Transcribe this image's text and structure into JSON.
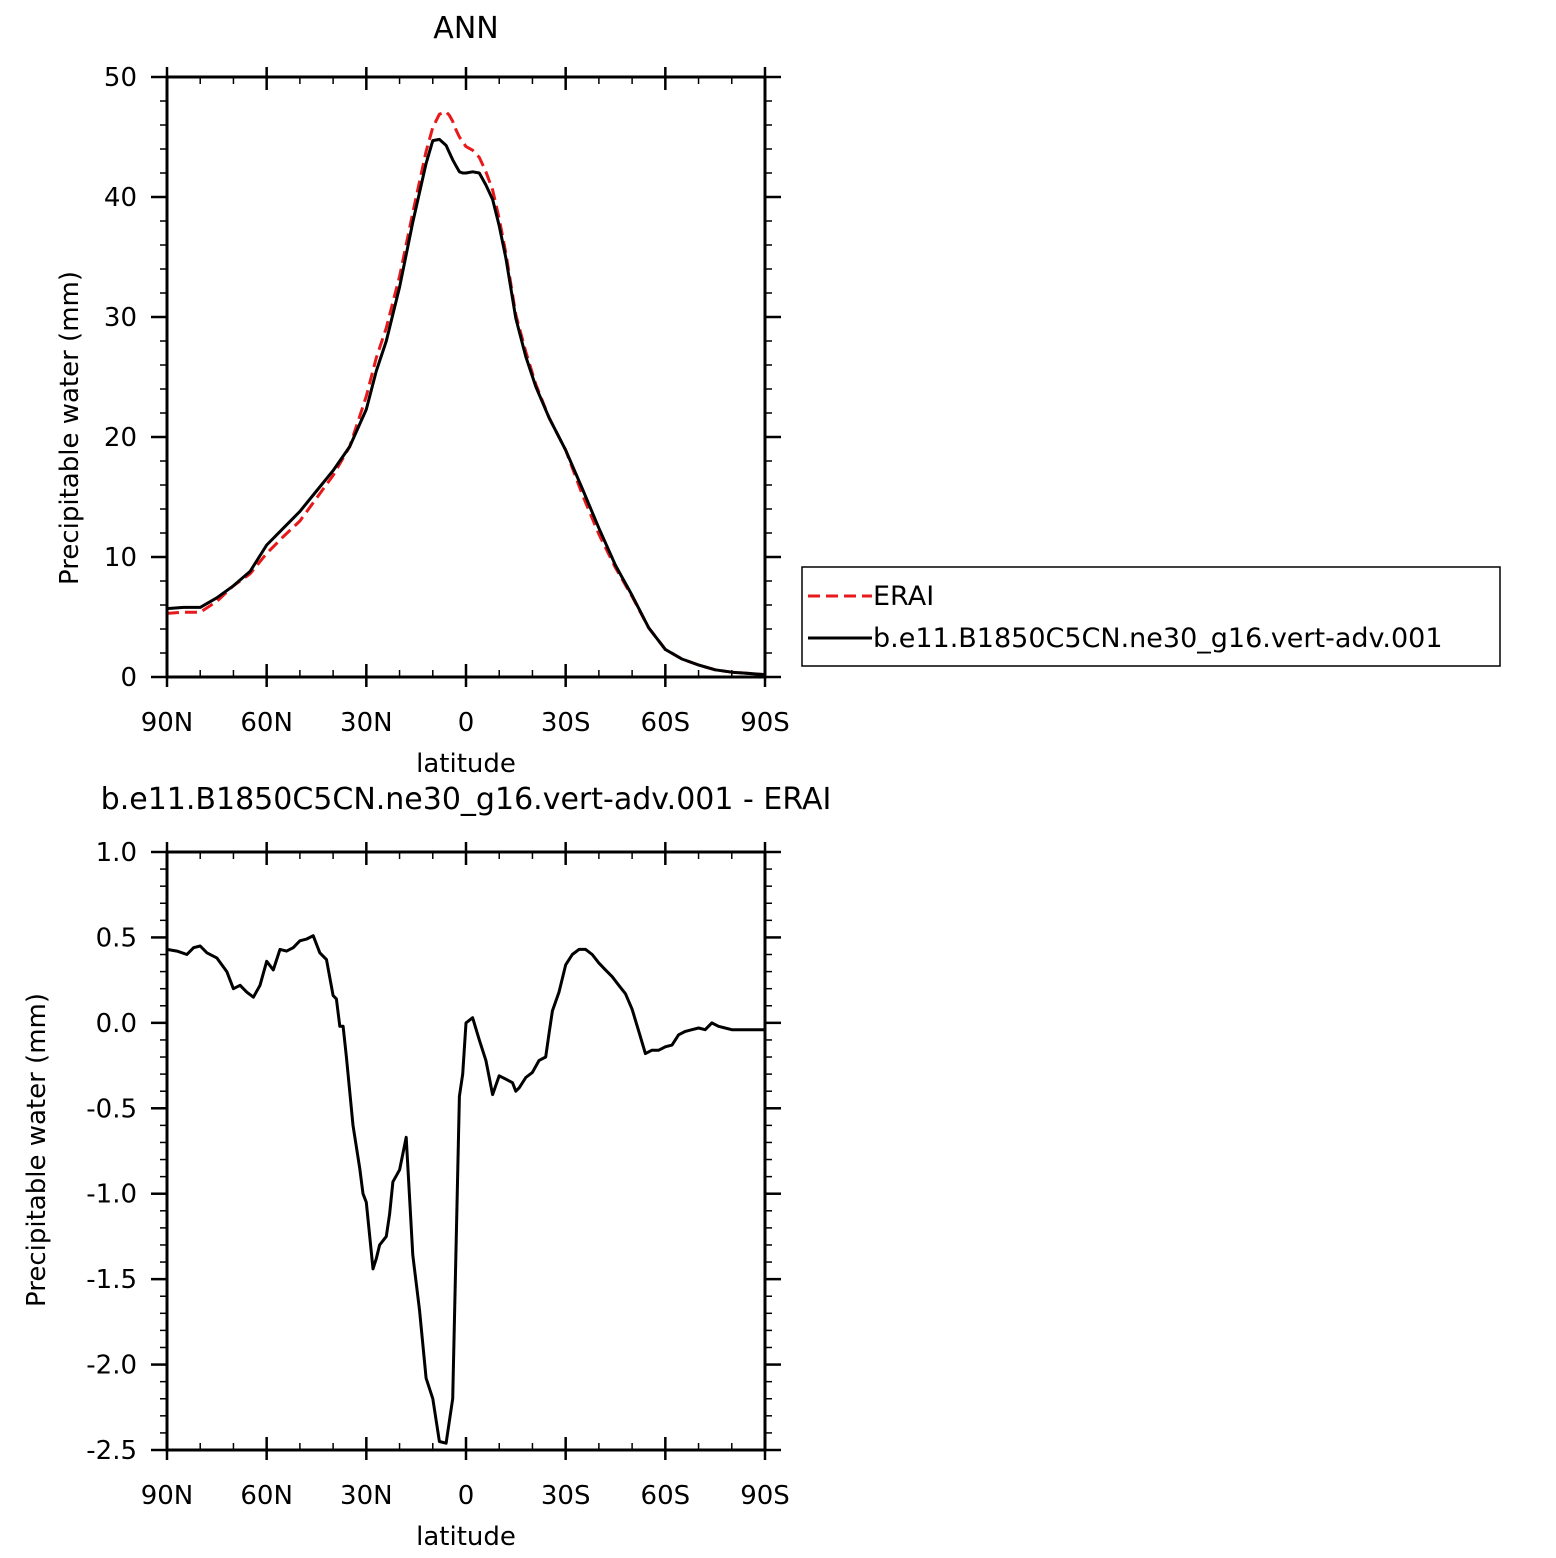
{
  "colors": {
    "erai": "#e8191b",
    "model": "#000000"
  },
  "chart_data": [
    {
      "type": "line",
      "title": "ANN",
      "xlabel": "latitude",
      "ylabel": "Precipitable water (mm)",
      "xlim": [
        90,
        -90
      ],
      "ylim": [
        0,
        50
      ],
      "xticks": [
        90,
        60,
        30,
        0,
        -30,
        -60,
        -90
      ],
      "xtick_labels": [
        "90N",
        "60N",
        "30N",
        "0",
        "30S",
        "60S",
        "90S"
      ],
      "yticks": [
        0,
        10,
        20,
        30,
        40,
        50
      ],
      "ytick_labels": [
        "0",
        "10",
        "20",
        "30",
        "40",
        "50"
      ],
      "legend": {
        "position": "right",
        "entries": [
          "ERAI",
          "b.e11.B1850C5CN.ne30_g16.vert-adv.001"
        ]
      },
      "series": [
        {
          "name": "ERAI",
          "style": "dashed",
          "color": "#e8191b",
          "x": [
            90,
            85,
            80,
            75,
            70,
            65,
            60,
            55,
            50,
            45,
            40,
            35,
            30,
            27,
            24,
            20,
            16,
            12,
            10,
            8,
            6,
            5,
            4,
            3,
            2,
            1,
            0,
            -2,
            -4,
            -6,
            -8,
            -10,
            -12,
            -15,
            -18,
            -21,
            -25,
            -30,
            -35,
            -40,
            -45,
            -50,
            -55,
            -60,
            -65,
            -70,
            -75,
            -80,
            -85,
            -90
          ],
          "y": [
            5.3,
            5.4,
            5.4,
            6.3,
            7.6,
            8.6,
            10.3,
            11.7,
            13.0,
            14.9,
            16.8,
            19.2,
            23.4,
            26.6,
            29.1,
            33.4,
            38.7,
            43.8,
            45.8,
            46.9,
            47.1,
            46.8,
            46.3,
            45.6,
            45.0,
            44.6,
            44.2,
            43.9,
            43.3,
            42.1,
            40.6,
            38.2,
            35.3,
            30.2,
            27.1,
            24.4,
            21.6,
            18.9,
            15.2,
            11.9,
            9.1,
            6.7,
            4.1,
            2.3,
            1.5,
            1.0,
            0.6,
            0.4,
            0.3,
            0.2
          ]
        },
        {
          "name": "b.e11.B1850C5CN.ne30_g16.vert-adv.001",
          "style": "solid",
          "color": "#000000",
          "x": [
            90,
            85,
            80,
            75,
            70,
            65,
            60,
            55,
            50,
            45,
            40,
            35,
            30,
            27,
            24,
            20,
            16,
            12,
            10,
            8,
            6,
            5,
            4,
            3,
            2,
            1,
            0,
            -2,
            -4,
            -6,
            -8,
            -10,
            -12,
            -15,
            -18,
            -21,
            -25,
            -30,
            -35,
            -40,
            -45,
            -50,
            -55,
            -60,
            -65,
            -70,
            -75,
            -80,
            -85,
            -90
          ],
          "y": [
            5.7,
            5.8,
            5.8,
            6.6,
            7.6,
            8.8,
            11.0,
            12.4,
            13.8,
            15.5,
            17.2,
            19.2,
            22.3,
            25.5,
            28.0,
            32.5,
            37.9,
            42.8,
            44.7,
            44.8,
            44.3,
            43.7,
            43.1,
            42.6,
            42.1,
            42.0,
            42.0,
            42.1,
            42.0,
            41.0,
            39.8,
            37.6,
            34.9,
            29.9,
            26.7,
            24.2,
            21.6,
            18.9,
            15.7,
            12.4,
            9.3,
            6.8,
            4.1,
            2.3,
            1.5,
            1.0,
            0.6,
            0.4,
            0.3,
            0.2
          ]
        }
      ]
    },
    {
      "type": "line",
      "title": "b.e11.B1850C5CN.ne30_g16.vert-adv.001  -  ERAI",
      "xlabel": "latitude",
      "ylabel": "Precipitable water (mm)",
      "xlim": [
        90,
        -90
      ],
      "ylim": [
        -2.5,
        1.0
      ],
      "xticks": [
        90,
        60,
        30,
        0,
        -30,
        -60,
        -90
      ],
      "xtick_labels": [
        "90N",
        "60N",
        "30N",
        "0",
        "30S",
        "60S",
        "90S"
      ],
      "yticks": [
        -2.5,
        -2.0,
        -1.5,
        -1.0,
        -0.5,
        0.0,
        0.5,
        1.0
      ],
      "ytick_labels": [
        "-2.5",
        "-2.0",
        "-1.5",
        "-1.0",
        "-0.5",
        "0.0",
        "0.5",
        "1.0"
      ],
      "series": [
        {
          "style": "solid",
          "color": "#000000",
          "x": [
            90,
            87,
            84,
            82,
            80,
            78,
            75,
            72,
            70,
            68,
            66,
            64,
            62,
            60,
            58,
            56,
            54,
            52,
            50,
            48,
            46,
            44,
            42,
            40,
            39,
            38,
            37,
            36,
            34,
            32,
            31,
            30,
            28,
            27,
            26,
            24,
            23,
            22,
            20,
            18,
            16,
            14,
            12,
            10,
            8,
            6,
            4,
            2,
            1,
            0,
            -2,
            -4,
            -6,
            -8,
            -10,
            -12,
            -14,
            -15,
            -16,
            -18,
            -20,
            -22,
            -24,
            -25,
            -26,
            -28,
            -30,
            -32,
            -34,
            -36,
            -38,
            -40,
            -42,
            -44,
            -46,
            -48,
            -50,
            -52,
            -54,
            -56,
            -58,
            -60,
            -62,
            -64,
            -66,
            -68,
            -70,
            -72,
            -74,
            -76,
            -78,
            -80,
            -82,
            -84,
            -86,
            -88,
            -90
          ],
          "y": [
            0.43,
            0.42,
            0.4,
            0.44,
            0.45,
            0.41,
            0.38,
            0.3,
            0.2,
            0.22,
            0.18,
            0.15,
            0.22,
            0.36,
            0.31,
            0.43,
            0.42,
            0.44,
            0.48,
            0.49,
            0.51,
            0.41,
            0.37,
            0.16,
            0.14,
            -0.02,
            -0.02,
            -0.2,
            -0.6,
            -0.85,
            -1.0,
            -1.05,
            -1.44,
            -1.38,
            -1.3,
            -1.25,
            -1.12,
            -0.93,
            -0.86,
            -0.67,
            -1.36,
            -1.68,
            -2.08,
            -2.2,
            -2.45,
            -2.46,
            -2.2,
            -0.43,
            -0.3,
            0.0,
            0.03,
            -0.1,
            -0.22,
            -0.42,
            -0.31,
            -0.33,
            -0.35,
            -0.4,
            -0.38,
            -0.32,
            -0.29,
            -0.22,
            -0.2,
            -0.06,
            0.07,
            0.18,
            0.34,
            0.4,
            0.43,
            0.43,
            0.4,
            0.35,
            0.31,
            0.27,
            0.22,
            0.17,
            0.08,
            -0.05,
            -0.18,
            -0.16,
            -0.16,
            -0.14,
            -0.13,
            -0.07,
            -0.05,
            -0.04,
            -0.03,
            -0.04,
            0.0,
            -0.02,
            -0.03,
            -0.04,
            -0.04,
            -0.04,
            -0.04,
            -0.04,
            -0.04
          ]
        }
      ]
    }
  ]
}
